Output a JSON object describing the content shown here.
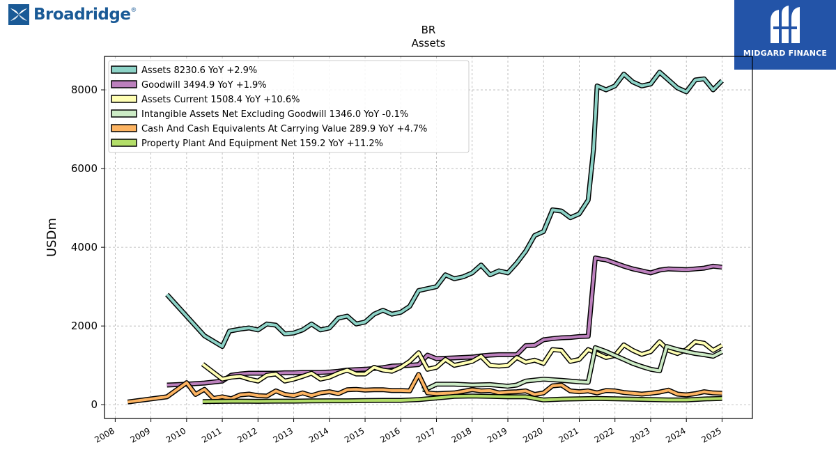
{
  "brand_left": {
    "name": "Broadridge",
    "mark": "®"
  },
  "brand_right": {
    "name": "MIDGARD FINANCE"
  },
  "chart_data": {
    "type": "line",
    "title": "BR",
    "subtitle": "Assets",
    "ylabel": "USDm",
    "xlim": [
      2007.7,
      2025.85
    ],
    "ylim": [
      -350,
      8850
    ],
    "yticks": [
      0,
      2000,
      4000,
      6000,
      8000
    ],
    "xticks": [
      "2008",
      "2009",
      "2010",
      "2011",
      "2012",
      "2013",
      "2014",
      "2015",
      "2016",
      "2017",
      "2018",
      "2019",
      "2020",
      "2021",
      "2022",
      "2023",
      "2024",
      "2025"
    ],
    "grid": true,
    "legend": "top-left",
    "series": [
      {
        "name": "Assets",
        "legend": "Assets  8230.6 YoY +2.9%",
        "color": "#8dd3c7",
        "x": [
          2009.45,
          2010.5,
          2011.0,
          2011.2,
          2011.5,
          2011.75,
          2012.0,
          2012.25,
          2012.5,
          2012.75,
          2013.0,
          2013.25,
          2013.5,
          2013.75,
          2014.0,
          2014.25,
          2014.5,
          2014.75,
          2015.0,
          2015.25,
          2015.5,
          2015.75,
          2016.0,
          2016.25,
          2016.5,
          2016.75,
          2017.0,
          2017.25,
          2017.5,
          2017.75,
          2018.0,
          2018.25,
          2018.5,
          2018.75,
          2019.0,
          2019.25,
          2019.5,
          2019.75,
          2020.0,
          2020.25,
          2020.5,
          2020.75,
          2021.0,
          2021.25,
          2021.4,
          2021.5,
          2021.75,
          2022.0,
          2022.25,
          2022.5,
          2022.75,
          2023.0,
          2023.25,
          2023.5,
          2023.75,
          2024.0,
          2024.25,
          2024.5,
          2024.75,
          2025.0
        ],
        "y": [
          2800,
          1750,
          1480,
          1870,
          1920,
          1950,
          1900,
          2050,
          2020,
          1800,
          1820,
          1900,
          2050,
          1900,
          1950,
          2200,
          2250,
          2050,
          2100,
          2300,
          2400,
          2300,
          2350,
          2500,
          2900,
          2950,
          3000,
          3300,
          3200,
          3250,
          3350,
          3550,
          3300,
          3400,
          3350,
          3600,
          3900,
          4300,
          4400,
          4950,
          4920,
          4750,
          4850,
          5200,
          6500,
          8100,
          8000,
          8100,
          8400,
          8200,
          8100,
          8150,
          8450,
          8250,
          8050,
          7950,
          8250,
          8280,
          8000,
          8230
        ]
      },
      {
        "name": "Goodwill",
        "legend": "Goodwill  3494.9 YoY +1.9%",
        "color": "#bc80bd",
        "x": [
          2009.45,
          2010.0,
          2010.5,
          2011.0,
          2011.25,
          2011.5,
          2011.75,
          2012.0,
          2012.25,
          2012.5,
          2012.75,
          2013.0,
          2013.25,
          2013.5,
          2013.75,
          2014.0,
          2014.25,
          2014.5,
          2014.75,
          2015.0,
          2015.25,
          2015.5,
          2015.75,
          2016.0,
          2016.25,
          2016.5,
          2016.75,
          2017.0,
          2017.25,
          2017.5,
          2017.75,
          2018.0,
          2018.25,
          2018.5,
          2018.75,
          2019.0,
          2019.25,
          2019.5,
          2019.75,
          2020.0,
          2020.25,
          2020.5,
          2020.75,
          2021.0,
          2021.25,
          2021.45,
          2021.6,
          2021.75,
          2022.0,
          2022.25,
          2022.5,
          2022.75,
          2023.0,
          2023.25,
          2023.5,
          2023.75,
          2024.0,
          2024.25,
          2024.5,
          2024.75,
          2025.0
        ],
        "y": [
          500,
          520,
          550,
          600,
          750,
          780,
          800,
          800,
          800,
          800,
          810,
          810,
          820,
          820,
          820,
          830,
          850,
          880,
          890,
          900,
          920,
          940,
          980,
          990,
          1000,
          1020,
          1260,
          1170,
          1180,
          1190,
          1200,
          1210,
          1240,
          1260,
          1270,
          1270,
          1270,
          1500,
          1510,
          1650,
          1680,
          1700,
          1710,
          1730,
          1740,
          3730,
          3700,
          3680,
          3600,
          3520,
          3450,
          3400,
          3350,
          3420,
          3450,
          3440,
          3430,
          3450,
          3470,
          3520,
          3495
        ]
      },
      {
        "name": "Assets Current",
        "legend": "Assets Current  1508.4 YoY +10.6%",
        "color": "#ffffb3",
        "x": [
          2010.45,
          2011.0,
          2011.25,
          2011.5,
          2011.75,
          2012.0,
          2012.25,
          2012.5,
          2012.75,
          2013.0,
          2013.25,
          2013.5,
          2013.75,
          2014.0,
          2014.25,
          2014.5,
          2014.75,
          2015.0,
          2015.25,
          2015.5,
          2015.75,
          2016.0,
          2016.25,
          2016.5,
          2016.75,
          2017.0,
          2017.25,
          2017.5,
          2017.75,
          2018.0,
          2018.25,
          2018.5,
          2018.75,
          2019.0,
          2019.25,
          2019.5,
          2019.75,
          2020.0,
          2020.25,
          2020.5,
          2020.75,
          2021.0,
          2021.25,
          2021.5,
          2021.75,
          2022.0,
          2022.25,
          2022.5,
          2022.75,
          2023.0,
          2023.25,
          2023.5,
          2023.75,
          2024.0,
          2024.25,
          2024.5,
          2024.75,
          2025.0
        ],
        "y": [
          1030,
          650,
          700,
          720,
          650,
          600,
          750,
          780,
          600,
          650,
          720,
          800,
          650,
          700,
          800,
          880,
          780,
          780,
          950,
          880,
          850,
          950,
          1100,
          1320,
          900,
          950,
          1150,
          1000,
          1050,
          1100,
          1230,
          1000,
          980,
          1000,
          1200,
          1080,
          1130,
          1050,
          1400,
          1380,
          1100,
          1150,
          1400,
          1300,
          1200,
          1250,
          1520,
          1380,
          1280,
          1350,
          1600,
          1380,
          1300,
          1400,
          1600,
          1560,
          1380,
          1508
        ]
      },
      {
        "name": "Intangible Assets Net Excluding Goodwill",
        "legend": "Intangible Assets Net Excluding Goodwill  1346.0 YoY -0.1%",
        "color": "#ccebc5",
        "x": [
          2016.6,
          2016.75,
          2017.0,
          2017.5,
          2018.0,
          2018.5,
          2019.0,
          2019.25,
          2019.5,
          2020.0,
          2020.5,
          2021.0,
          2021.25,
          2021.45,
          2021.75,
          2022.0,
          2022.25,
          2022.5,
          2022.75,
          2023.0,
          2023.25,
          2023.45,
          2023.75,
          2024.0,
          2024.25,
          2024.5,
          2024.75,
          2025.0
        ],
        "y": [
          380,
          410,
          520,
          520,
          500,
          510,
          470,
          500,
          600,
          650,
          620,
          580,
          570,
          1450,
          1350,
          1250,
          1150,
          1050,
          970,
          900,
          860,
          1480,
          1400,
          1350,
          1300,
          1270,
          1230,
          1346
        ]
      },
      {
        "name": "Cash And Cash Equivalents At Carrying Value",
        "legend": "Cash And Cash Equivalents At Carrying Value  289.9 YoY +4.7%",
        "color": "#fdb462",
        "x": [
          2008.35,
          2009.45,
          2010.0,
          2010.25,
          2010.5,
          2010.75,
          2011.0,
          2011.25,
          2011.5,
          2011.75,
          2012.0,
          2012.25,
          2012.5,
          2012.75,
          2013.0,
          2013.25,
          2013.5,
          2013.75,
          2014.0,
          2014.25,
          2014.5,
          2014.75,
          2015.0,
          2015.25,
          2015.5,
          2015.75,
          2016.0,
          2016.25,
          2016.5,
          2016.75,
          2017.0,
          2017.5,
          2018.0,
          2018.25,
          2018.5,
          2018.75,
          2019.0,
          2019.25,
          2019.5,
          2019.75,
          2020.0,
          2020.25,
          2020.5,
          2020.75,
          2021.0,
          2021.25,
          2021.5,
          2021.75,
          2022.0,
          2022.25,
          2022.5,
          2022.75,
          2023.0,
          2023.25,
          2023.5,
          2023.75,
          2024.0,
          2024.25,
          2024.5,
          2024.75,
          2025.0
        ],
        "y": [
          70,
          200,
          560,
          260,
          390,
          160,
          200,
          150,
          250,
          270,
          230,
          220,
          350,
          260,
          230,
          300,
          230,
          300,
          330,
          280,
          380,
          390,
          370,
          380,
          380,
          360,
          360,
          350,
          770,
          300,
          280,
          300,
          380,
          350,
          360,
          300,
          320,
          330,
          350,
          260,
          300,
          480,
          500,
          350,
          330,
          350,
          300,
          360,
          350,
          310,
          290,
          270,
          290,
          320,
          370,
          270,
          250,
          280,
          330,
          300,
          290
        ]
      },
      {
        "name": "Property Plant And Equipment Net",
        "legend": "Property Plant And Equipment Net  159.2 YoY +11.2%",
        "color": "#b3de69",
        "x": [
          2010.45,
          2011.0,
          2011.5,
          2012.0,
          2012.5,
          2013.0,
          2013.5,
          2014.0,
          2014.5,
          2015.0,
          2015.5,
          2016.0,
          2016.5,
          2017.0,
          2017.5,
          2018.0,
          2018.5,
          2019.0,
          2019.5,
          2020.0,
          2020.5,
          2021.0,
          2021.5,
          2022.0,
          2022.5,
          2023.0,
          2023.5,
          2024.0,
          2024.5,
          2025.0
        ],
        "y": [
          80,
          85,
          90,
          85,
          90,
          90,
          95,
          100,
          100,
          105,
          110,
          110,
          130,
          170,
          210,
          220,
          210,
          200,
          200,
          120,
          140,
          150,
          160,
          150,
          140,
          130,
          120,
          120,
          145,
          159
        ]
      }
    ]
  }
}
